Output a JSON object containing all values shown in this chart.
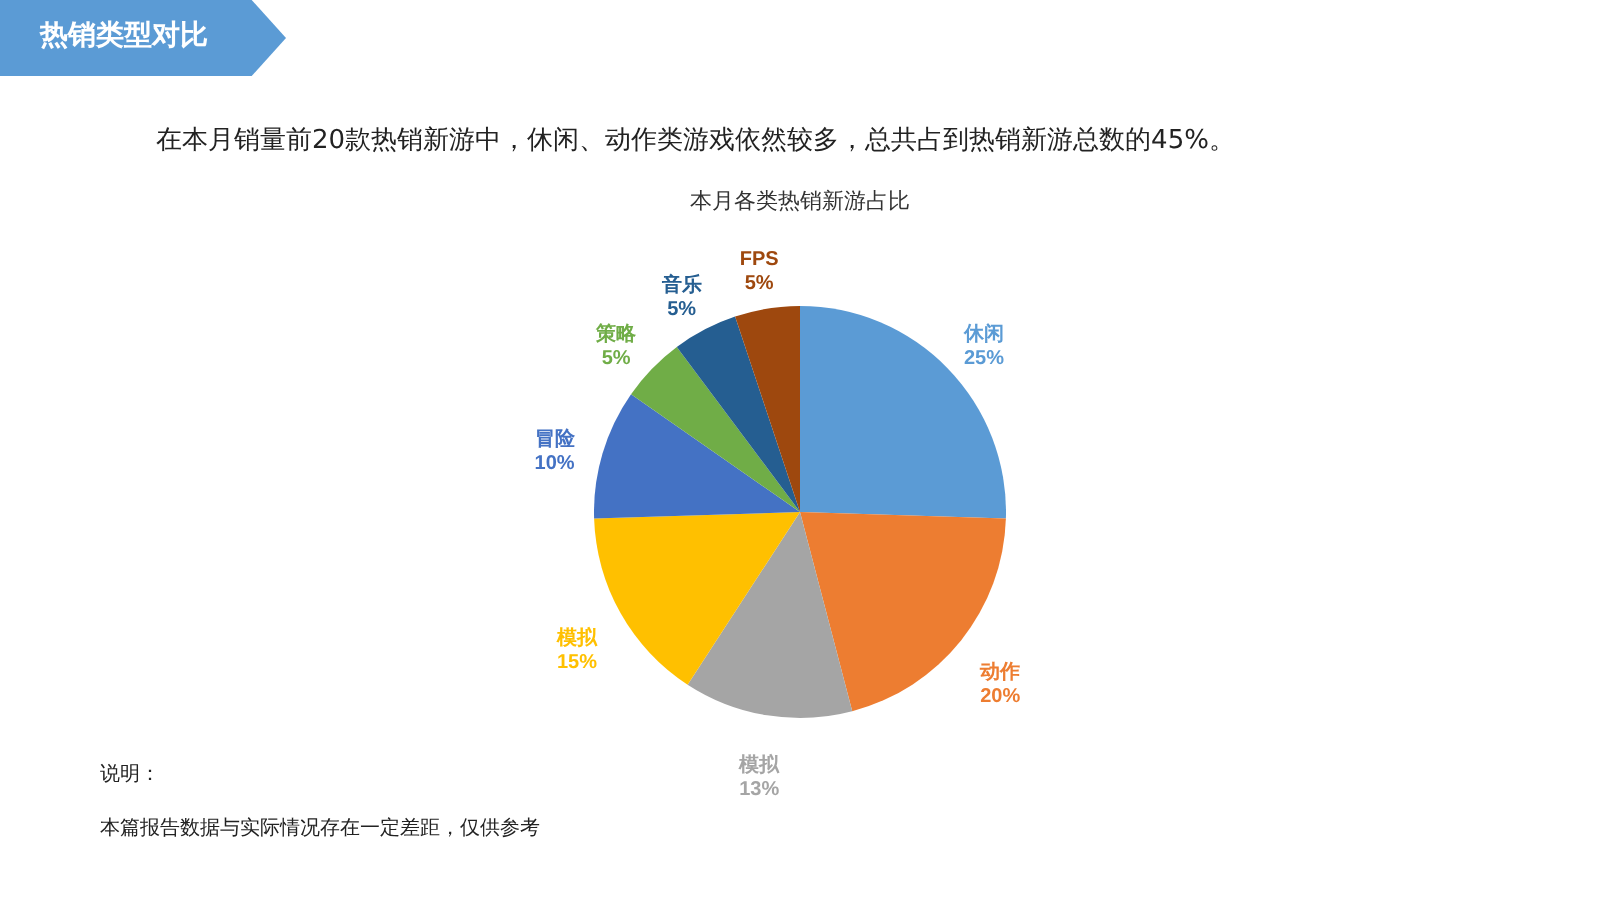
{
  "chart_data": {
    "type": "pie",
    "title": "本月各类热销新游占比",
    "categories": [
      "休闲",
      "动作",
      "模拟",
      "模拟",
      "冒险",
      "策略",
      "音乐",
      "FPS"
    ],
    "values": [
      25,
      20,
      13,
      15,
      10,
      5,
      5,
      5
    ],
    "value_labels": [
      "25%",
      "20%",
      "13%",
      "15%",
      "10%",
      "5%",
      "5%",
      "5%"
    ],
    "colors": [
      "#5b9bd5",
      "#ed7d31",
      "#a5a5a5",
      "#ffc000",
      "#4472c4",
      "#70ad47",
      "#255e91",
      "#9e480e"
    ],
    "annotations": [
      "热销类型对比",
      "在本月销量前20款热销新游中，休闲、动作类游戏依然较多，总共占到热销新游总数的45%。",
      "说明：",
      "本篇报告数据与实际情况存在一定差距，仅供参考"
    ]
  }
}
